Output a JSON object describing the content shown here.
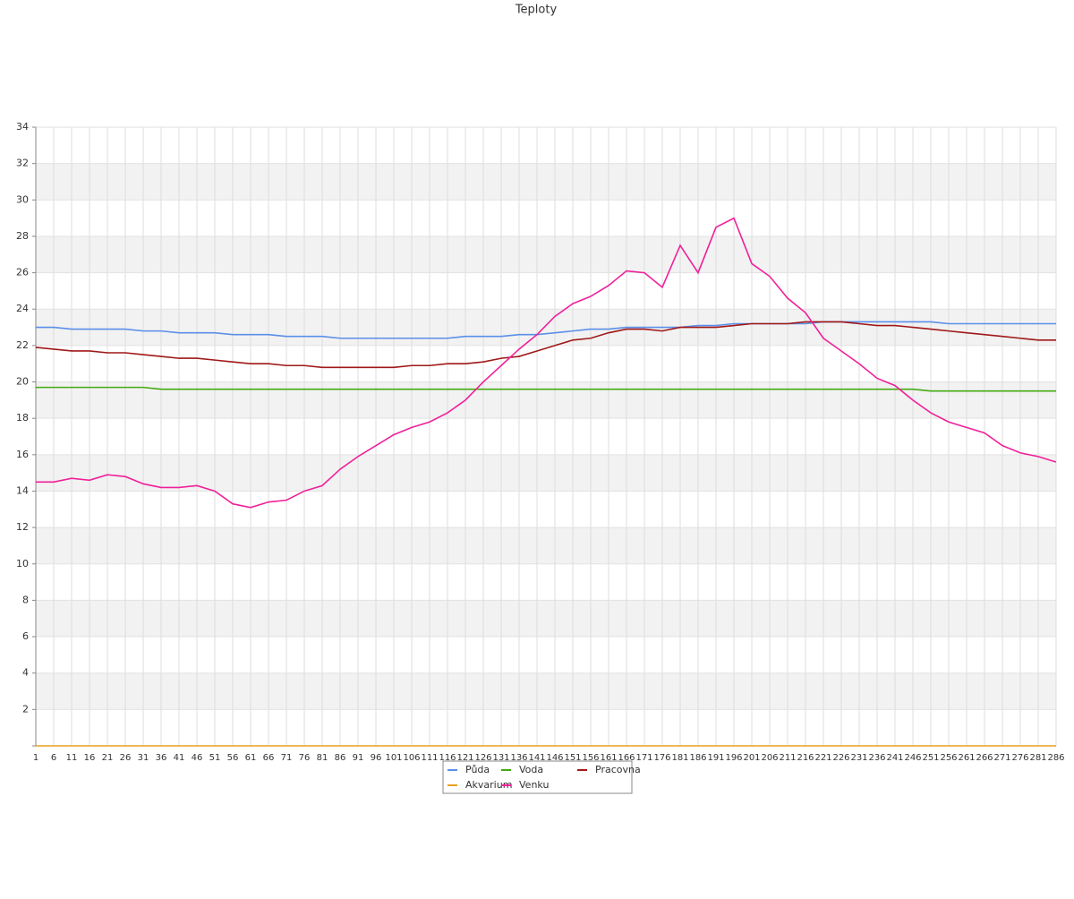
{
  "chart_data": {
    "type": "line",
    "title": "Teploty",
    "x": [
      1,
      6,
      11,
      16,
      21,
      26,
      31,
      36,
      41,
      46,
      51,
      56,
      61,
      66,
      71,
      76,
      81,
      86,
      91,
      96,
      101,
      106,
      111,
      116,
      121,
      126,
      131,
      136,
      141,
      146,
      151,
      156,
      161,
      166,
      171,
      176,
      181,
      186,
      191,
      196,
      201,
      206,
      211,
      216,
      221,
      226,
      231,
      236,
      241,
      246,
      251,
      256,
      261,
      266,
      271,
      276,
      281,
      286
    ],
    "xlim": [
      1,
      286
    ],
    "ylim": [
      0,
      34
    ],
    "yticks": [
      2,
      4,
      6,
      8,
      10,
      12,
      14,
      16,
      18,
      20,
      22,
      24,
      26,
      28,
      30,
      32,
      34
    ],
    "grid": true,
    "series": [
      {
        "name": "Půda",
        "color": "#5b8fe8",
        "values": [
          23.0,
          23.0,
          22.9,
          22.9,
          22.9,
          22.9,
          22.8,
          22.8,
          22.7,
          22.7,
          22.7,
          22.6,
          22.6,
          22.6,
          22.5,
          22.5,
          22.5,
          22.4,
          22.4,
          22.4,
          22.4,
          22.4,
          22.4,
          22.4,
          22.5,
          22.5,
          22.5,
          22.6,
          22.6,
          22.7,
          22.8,
          22.9,
          22.9,
          23.0,
          23.0,
          23.0,
          23.0,
          23.1,
          23.1,
          23.2,
          23.2,
          23.2,
          23.2,
          23.2,
          23.3,
          23.3,
          23.3,
          23.3,
          23.3,
          23.3,
          23.3,
          23.2,
          23.2,
          23.2,
          23.2,
          23.2,
          23.2,
          23.2
        ]
      },
      {
        "name": "Voda",
        "color": "#44aa11",
        "values": [
          19.7,
          19.7,
          19.7,
          19.7,
          19.7,
          19.7,
          19.7,
          19.6,
          19.6,
          19.6,
          19.6,
          19.6,
          19.6,
          19.6,
          19.6,
          19.6,
          19.6,
          19.6,
          19.6,
          19.6,
          19.6,
          19.6,
          19.6,
          19.6,
          19.6,
          19.6,
          19.6,
          19.6,
          19.6,
          19.6,
          19.6,
          19.6,
          19.6,
          19.6,
          19.6,
          19.6,
          19.6,
          19.6,
          19.6,
          19.6,
          19.6,
          19.6,
          19.6,
          19.6,
          19.6,
          19.6,
          19.6,
          19.6,
          19.6,
          19.6,
          19.5,
          19.5,
          19.5,
          19.5,
          19.5,
          19.5,
          19.5,
          19.5
        ]
      },
      {
        "name": "Pracovna",
        "color": "#a01818",
        "values": [
          21.9,
          21.8,
          21.7,
          21.7,
          21.6,
          21.6,
          21.5,
          21.4,
          21.3,
          21.3,
          21.2,
          21.1,
          21.0,
          21.0,
          20.9,
          20.9,
          20.8,
          20.8,
          20.8,
          20.8,
          20.8,
          20.9,
          20.9,
          21.0,
          21.0,
          21.1,
          21.3,
          21.4,
          21.7,
          22.0,
          22.3,
          22.4,
          22.7,
          22.9,
          22.9,
          22.8,
          23.0,
          23.0,
          23.0,
          23.1,
          23.2,
          23.2,
          23.2,
          23.3,
          23.3,
          23.3,
          23.2,
          23.1,
          23.1,
          23.0,
          22.9,
          22.8,
          22.7,
          22.6,
          22.5,
          22.4,
          22.3,
          22.3
        ]
      },
      {
        "name": "Akvarium",
        "color": "#e8a020",
        "values": [
          0,
          0,
          0,
          0,
          0,
          0,
          0,
          0,
          0,
          0,
          0,
          0,
          0,
          0,
          0,
          0,
          0,
          0,
          0,
          0,
          0,
          0,
          0,
          0,
          0,
          0,
          0,
          0,
          0,
          0,
          0,
          0,
          0,
          0,
          0,
          0,
          0,
          0,
          0,
          0,
          0,
          0,
          0,
          0,
          0,
          0,
          0,
          0,
          0,
          0,
          0,
          0,
          0,
          0,
          0,
          0,
          0,
          0
        ]
      },
      {
        "name": "Venku",
        "color": "#f0209a",
        "values": [
          14.5,
          14.5,
          14.7,
          14.6,
          14.9,
          14.8,
          14.4,
          14.2,
          14.2,
          14.3,
          14.0,
          13.3,
          13.1,
          13.4,
          13.5,
          14.0,
          14.3,
          15.2,
          15.9,
          16.5,
          17.1,
          17.5,
          17.8,
          18.3,
          19.0,
          20.0,
          20.9,
          21.8,
          22.6,
          23.6,
          24.3,
          24.7,
          25.3,
          26.1,
          26.0,
          25.2,
          27.5,
          26.0,
          28.5,
          29.0,
          26.5,
          25.8,
          24.6,
          23.8,
          22.4,
          21.7,
          21.0,
          20.2,
          19.8,
          19.0,
          18.3,
          17.8,
          17.5,
          17.2,
          16.5,
          16.1,
          15.9,
          15.6
        ]
      }
    ]
  }
}
